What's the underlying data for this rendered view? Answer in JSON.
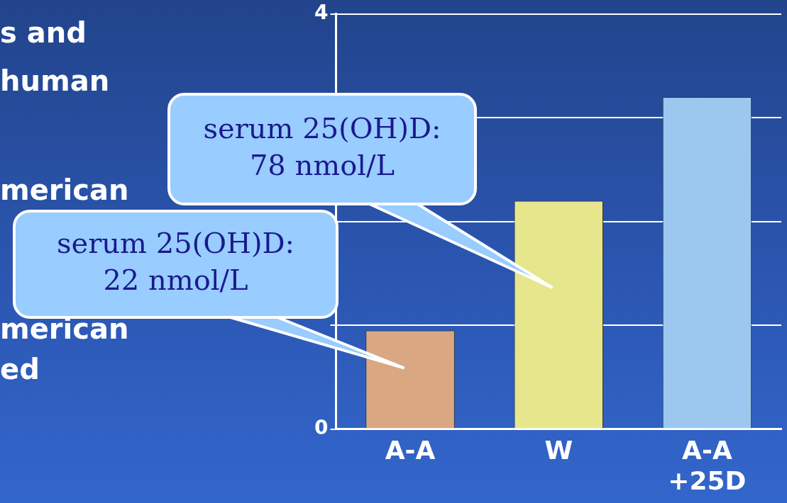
{
  "chart_data": {
    "type": "bar",
    "categories": [
      "A-A",
      "W",
      "A-A\n+25D"
    ],
    "values": [
      0.95,
      2.2,
      3.2
    ],
    "colors": [
      "#d9a882",
      "#e6e68c",
      "#9cc8f0"
    ],
    "ylim": [
      0,
      4
    ],
    "yticks": [
      0,
      {
        "value": 1,
        "label": null
      },
      {
        "value": 2,
        "label": null
      },
      {
        "value": 3,
        "label": null
      },
      4
    ],
    "grid": "y",
    "legend": false,
    "annotations": [
      "s and",
      "human",
      "merican",
      "merican",
      "ed",
      "serum 25(OH)D:\n22 nmol/L",
      "serum 25(OH)D:\n78 nmol/L"
    ]
  }
}
